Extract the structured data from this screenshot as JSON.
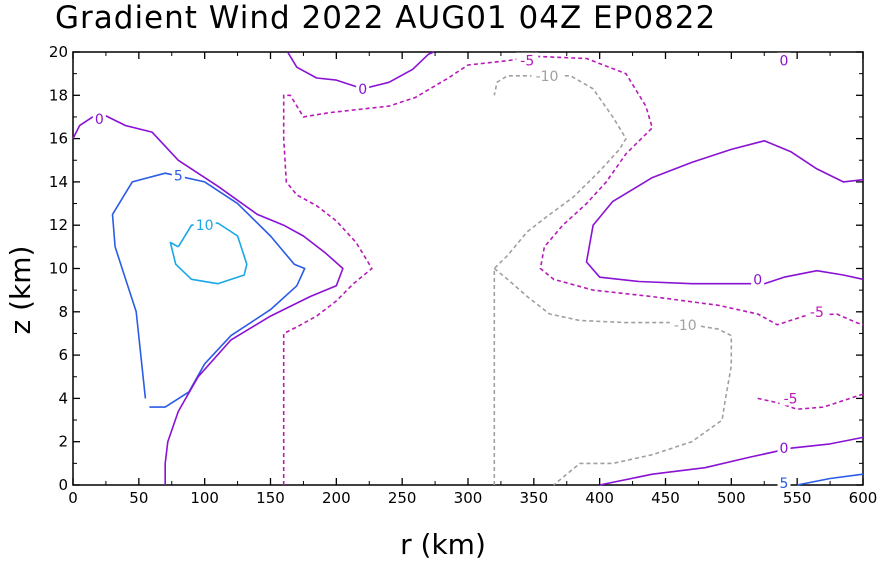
{
  "chart_data": {
    "type": "contour",
    "title": "Gradient Wind 2022 AUG01 04Z   EP0822",
    "xlabel": "r (km)",
    "ylabel": "z (km)",
    "xlim": [
      0,
      600
    ],
    "ylim": [
      0,
      20
    ],
    "xticks": [
      0,
      50,
      100,
      150,
      200,
      250,
      300,
      350,
      400,
      450,
      500,
      550,
      600
    ],
    "yticks": [
      0,
      2,
      4,
      6,
      8,
      10,
      12,
      14,
      16,
      18,
      20
    ],
    "colors": {
      "pos10": "#1aa7e6",
      "pos5": "#2a5ce6",
      "zero": "#8a12d4",
      "neg5": "#b81ab8",
      "neg10": "#a0a0a0"
    },
    "contours": [
      {
        "id": "c10-core",
        "level": 10,
        "colorKey": "pos10",
        "dashed": false,
        "points": [
          [
            80,
            11.0
          ],
          [
            90,
            12.0
          ],
          [
            110,
            12.1
          ],
          [
            125,
            11.5
          ],
          [
            132,
            10.2
          ],
          [
            130,
            9.7
          ],
          [
            110,
            9.3
          ],
          [
            90,
            9.5
          ],
          [
            78,
            10.2
          ],
          [
            74,
            11.2
          ],
          [
            80,
            11.0
          ]
        ],
        "label": {
          "text": "10",
          "x": 100,
          "y": 12.0
        }
      },
      {
        "id": "c5-core",
        "level": 5,
        "colorKey": "pos5",
        "dashed": false,
        "points": [
          [
            55,
            4.0
          ],
          [
            48,
            8.0
          ],
          [
            32,
            11.0
          ],
          [
            30,
            12.5
          ],
          [
            45,
            14.0
          ],
          [
            70,
            14.4
          ],
          [
            100,
            14.0
          ],
          [
            125,
            13.0
          ],
          [
            150,
            11.5
          ],
          [
            168,
            10.2
          ],
          [
            176,
            10.0
          ],
          [
            170,
            9.2
          ],
          [
            150,
            8.1
          ],
          [
            120,
            6.9
          ],
          [
            100,
            5.6
          ],
          [
            88,
            4.3
          ],
          [
            70,
            3.6
          ],
          [
            58,
            3.6
          ]
        ],
        "label": {
          "text": "5",
          "x": 80,
          "y": 14.3
        }
      },
      {
        "id": "c0-left",
        "level": 0,
        "colorKey": "zero",
        "dashed": false,
        "points": [
          [
            0,
            16.0
          ],
          [
            5,
            16.6
          ],
          [
            20,
            17.2
          ],
          [
            40,
            16.6
          ],
          [
            60,
            16.3
          ],
          [
            80,
            15.0
          ],
          [
            110,
            13.8
          ],
          [
            140,
            12.5
          ],
          [
            160,
            12.0
          ],
          [
            175,
            11.5
          ],
          [
            192,
            10.7
          ],
          [
            205,
            10.0
          ],
          [
            200,
            9.2
          ],
          [
            180,
            8.7
          ],
          [
            150,
            7.8
          ],
          [
            120,
            6.7
          ],
          [
            95,
            5.0
          ],
          [
            80,
            3.4
          ],
          [
            72,
            2.0
          ],
          [
            70,
            1.0
          ],
          [
            70,
            0
          ]
        ],
        "label": {
          "text": "0",
          "x": 20,
          "y": 16.9
        }
      },
      {
        "id": "c0-top",
        "level": 0,
        "colorKey": "zero",
        "dashed": false,
        "points": [
          [
            163,
            20.0
          ],
          [
            170,
            19.3
          ],
          [
            185,
            18.8
          ],
          [
            200,
            18.7
          ],
          [
            220,
            18.3
          ],
          [
            240,
            18.6
          ],
          [
            258,
            19.2
          ],
          [
            270,
            19.9
          ],
          [
            274,
            20.0
          ]
        ],
        "label": {
          "text": "0",
          "x": 220,
          "y": 18.3
        }
      },
      {
        "id": "c0-right",
        "level": 0,
        "colorKey": "zero",
        "dashed": false,
        "points": [
          [
            600,
            14.1
          ],
          [
            585,
            14.0
          ],
          [
            565,
            14.6
          ],
          [
            545,
            15.4
          ],
          [
            525,
            15.9
          ],
          [
            500,
            15.5
          ],
          [
            470,
            14.9
          ],
          [
            440,
            14.2
          ],
          [
            410,
            13.1
          ],
          [
            395,
            12.0
          ],
          [
            390,
            10.3
          ],
          [
            400,
            9.6
          ],
          [
            430,
            9.4
          ],
          [
            470,
            9.3
          ],
          [
            500,
            9.3
          ],
          [
            525,
            9.3
          ],
          [
            540,
            9.6
          ],
          [
            565,
            9.9
          ],
          [
            585,
            9.7
          ],
          [
            600,
            9.5
          ]
        ],
        "label": {
          "text": "0",
          "x": 520,
          "y": 9.5
        }
      },
      {
        "id": "c0-bottom",
        "level": 0,
        "colorKey": "zero",
        "dashed": false,
        "points": [
          [
            400,
            0
          ],
          [
            440,
            0.5
          ],
          [
            480,
            0.8
          ],
          [
            515,
            1.3
          ],
          [
            545,
            1.7
          ],
          [
            575,
            1.9
          ],
          [
            600,
            2.2
          ]
        ],
        "label": {
          "text": "0",
          "x": 540,
          "y": 1.7
        }
      },
      {
        "id": "c0-topright",
        "level": 0,
        "colorKey": "zero",
        "dashed": false,
        "points": [],
        "label": {
          "text": "0",
          "x": 540,
          "y": 19.6
        }
      },
      {
        "id": "c5-bottomright",
        "level": 5,
        "colorKey": "pos5",
        "dashed": false,
        "points": [
          [
            550,
            0
          ],
          [
            575,
            0.3
          ],
          [
            600,
            0.5
          ]
        ],
        "label": {
          "text": "5",
          "x": 540,
          "y": 0.1
        }
      },
      {
        "id": "cm5-left",
        "level": -5,
        "colorKey": "neg5",
        "dashed": true,
        "points": [
          [
            160,
            0
          ],
          [
            160,
            7.0
          ],
          [
            170,
            7.3
          ],
          [
            185,
            7.8
          ],
          [
            200,
            8.5
          ],
          [
            213,
            9.3
          ],
          [
            227,
            10.0
          ],
          [
            215,
            11.2
          ],
          [
            200,
            12.2
          ],
          [
            185,
            12.9
          ],
          [
            170,
            13.4
          ],
          [
            162,
            14.0
          ],
          [
            160,
            16.0
          ],
          [
            160,
            18.0
          ],
          [
            165,
            18.0
          ],
          [
            175,
            17.0
          ],
          [
            195,
            17.2
          ],
          [
            240,
            17.5
          ],
          [
            260,
            17.9
          ],
          [
            285,
            18.8
          ],
          [
            300,
            19.4
          ],
          [
            330,
            19.6
          ],
          [
            350,
            19.8
          ],
          [
            390,
            19.7
          ],
          [
            420,
            19.0
          ],
          [
            435,
            17.5
          ],
          [
            440,
            16.5
          ],
          [
            420,
            15.3
          ],
          [
            405,
            14.0
          ],
          [
            390,
            13.0
          ],
          [
            372,
            12.0
          ],
          [
            358,
            11.0
          ],
          [
            355,
            10.0
          ],
          [
            365,
            9.5
          ],
          [
            395,
            9.0
          ],
          [
            440,
            8.7
          ],
          [
            490,
            8.3
          ],
          [
            520,
            7.9
          ],
          [
            535,
            7.4
          ],
          [
            555,
            7.8
          ],
          [
            580,
            7.9
          ],
          [
            595,
            7.5
          ],
          [
            600,
            7.4
          ]
        ],
        "label": {
          "text": "-5",
          "x": 345,
          "y": 19.6
        }
      },
      {
        "id": "cm5-right-upper",
        "level": -5,
        "colorKey": "neg5",
        "dashed": true,
        "points": [],
        "label": {
          "text": "-5",
          "x": 565,
          "y": 8.0
        }
      },
      {
        "id": "cm5-lower",
        "level": -5,
        "colorKey": "neg5",
        "dashed": true,
        "points": [
          [
            520,
            4.0
          ],
          [
            535,
            3.8
          ],
          [
            550,
            3.5
          ],
          [
            570,
            3.6
          ],
          [
            600,
            4.2
          ]
        ],
        "label": {
          "text": "-5",
          "x": 545,
          "y": 4.0
        }
      },
      {
        "id": "cm10",
        "level": -10,
        "colorKey": "neg10",
        "dashed": true,
        "points": [
          [
            320,
            0
          ],
          [
            320,
            10.0
          ],
          [
            330,
            10.6
          ],
          [
            345,
            11.7
          ],
          [
            360,
            12.4
          ],
          [
            380,
            13.3
          ],
          [
            400,
            14.5
          ],
          [
            415,
            15.5
          ],
          [
            420,
            16.0
          ],
          [
            410,
            17.0
          ],
          [
            395,
            18.3
          ],
          [
            378,
            18.9
          ],
          [
            352,
            18.9
          ],
          [
            330,
            18.9
          ],
          [
            322,
            18.6
          ],
          [
            320,
            18.0
          ]
        ],
        "label": {
          "text": "-10",
          "x": 360,
          "y": 18.9
        }
      },
      {
        "id": "cm10-lower",
        "level": -10,
        "colorKey": "neg10",
        "dashed": true,
        "points": [
          [
            320,
            10.0
          ],
          [
            330,
            9.5
          ],
          [
            345,
            8.7
          ],
          [
            362,
            7.9
          ],
          [
            385,
            7.6
          ],
          [
            420,
            7.5
          ],
          [
            460,
            7.5
          ],
          [
            490,
            7.2
          ],
          [
            500,
            6.9
          ],
          [
            500,
            5.5
          ],
          [
            495,
            3.8
          ],
          [
            493,
            3.0
          ],
          [
            470,
            2.0
          ],
          [
            440,
            1.4
          ],
          [
            410,
            1.0
          ],
          [
            385,
            1.0
          ],
          [
            375,
            0.5
          ],
          [
            365,
            0
          ]
        ],
        "label": {
          "text": "-10",
          "x": 465,
          "y": 7.4
        }
      }
    ]
  }
}
